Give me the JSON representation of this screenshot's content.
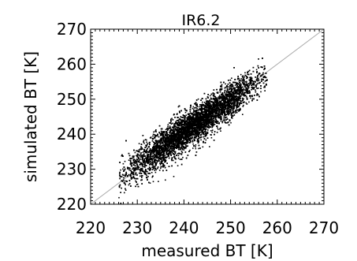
{
  "chart_data": {
    "type": "scatter",
    "title": "IR6.2",
    "xlabel": "measured BT [K]",
    "ylabel": "simulated BT [K]",
    "xlim": [
      220,
      270
    ],
    "ylim": [
      220,
      270
    ],
    "xticks": [
      "220",
      "230",
      "240",
      "250",
      "260",
      "270"
    ],
    "yticks": [
      "220",
      "230",
      "240",
      "250",
      "260",
      "270"
    ],
    "reference_line": {
      "description": "1:1 line",
      "from": [
        220,
        220
      ],
      "to": [
        270,
        270
      ],
      "color": "#aaaaaa"
    },
    "point_color": "#000000",
    "grid": false,
    "legend": "none",
    "series": [
      {
        "distribution": "dense elongated cloud along a line",
        "x_range": [
          226,
          258
        ],
        "center_line": {
          "slope": 0.93,
          "intercept": 17.2
        },
        "spread_sd_y": 2.6,
        "n_points": 9000
      }
    ]
  }
}
